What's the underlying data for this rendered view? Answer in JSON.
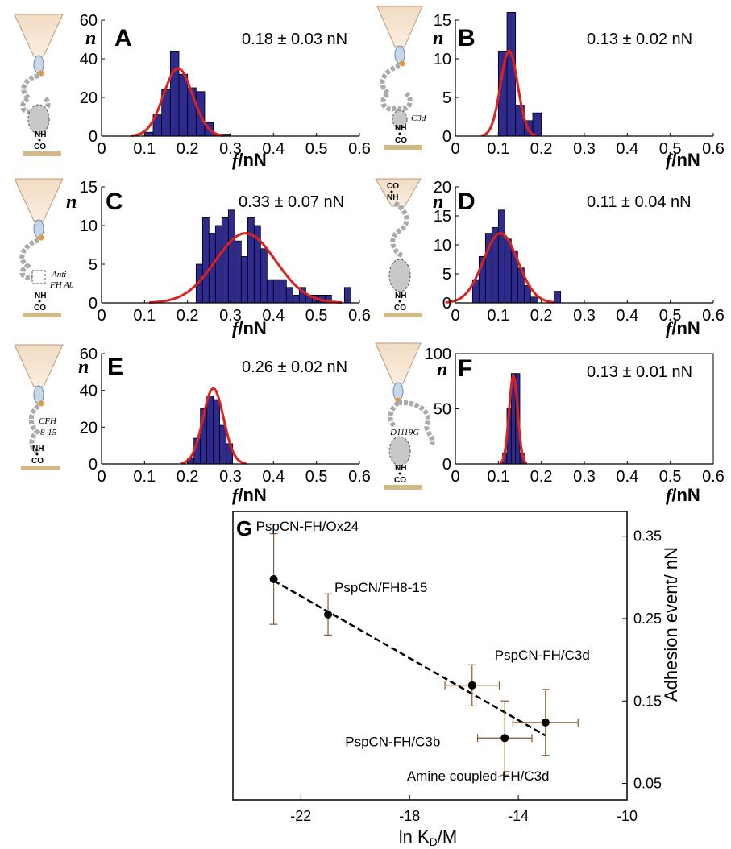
{
  "chart_data": [
    {
      "type": "bar",
      "panel": "A",
      "annotation": "0.18 ± 0.03 nN",
      "ylabel": "n",
      "xlabel_italic": "f",
      "xlabel_unit": "/nN",
      "xlim": [
        0,
        0.6
      ],
      "ylim": [
        0,
        60
      ],
      "xticks": [
        "0",
        "0.1",
        "0.2",
        "0.3",
        "0.4",
        "0.5",
        "0.6"
      ],
      "yticks": [
        "0",
        "20",
        "40",
        "60"
      ],
      "bin_width": 0.02,
      "bin_starts": [
        0.1,
        0.12,
        0.14,
        0.16,
        0.18,
        0.2,
        0.22,
        0.24,
        0.26,
        0.28
      ],
      "values": [
        2,
        11,
        24,
        44,
        32,
        25,
        23,
        7,
        1,
        1
      ],
      "gaussian_fit": {
        "mean": 0.178,
        "sd": 0.034,
        "peak": 35
      },
      "diagram_label": ""
    },
    {
      "type": "bar",
      "panel": "B",
      "annotation": "0.13 ± 0.02 nN",
      "ylabel": "n",
      "xlabel_italic": "f",
      "xlabel_unit": "/nN",
      "xlim": [
        0,
        0.6
      ],
      "ylim": [
        0,
        15
      ],
      "xticks": [
        "0",
        "0.1",
        "0.2",
        "0.3",
        "0.4",
        "0.5",
        "0.6"
      ],
      "yticks": [
        "0",
        "5",
        "10",
        "15"
      ],
      "bin_width": 0.02,
      "bin_starts": [
        0.1,
        0.12,
        0.14,
        0.16,
        0.18
      ],
      "values": [
        11,
        16,
        4,
        2,
        3
      ],
      "gaussian_fit": {
        "mean": 0.125,
        "sd": 0.02,
        "peak": 11
      },
      "diagram_label": "C3d"
    },
    {
      "type": "bar",
      "panel": "C",
      "annotation": "0.33 ± 0.07 nN",
      "ylabel": "n",
      "xlabel_italic": "f",
      "xlabel_unit": "/nN",
      "xlim": [
        0,
        0.6
      ],
      "ylim": [
        0,
        15
      ],
      "xticks": [
        "0",
        "0.1",
        "0.2",
        "0.3",
        "0.4",
        "0.5",
        "0.6"
      ],
      "yticks": [
        "0",
        "5",
        "10",
        "15"
      ],
      "bin_width": 0.015,
      "bin_starts": [
        0.22,
        0.235,
        0.25,
        0.265,
        0.28,
        0.295,
        0.31,
        0.325,
        0.34,
        0.355,
        0.37,
        0.385,
        0.4,
        0.415,
        0.43,
        0.445,
        0.46,
        0.475,
        0.49,
        0.505,
        0.52,
        0.565
      ],
      "values": [
        5,
        11,
        9,
        10,
        11,
        12,
        8,
        6,
        11,
        10,
        7,
        3,
        3,
        3,
        2,
        1,
        2,
        1,
        1,
        1,
        1,
        2
      ],
      "gaussian_fit": {
        "mean": 0.335,
        "sd": 0.07,
        "peak": 9
      },
      "diagram_label": "Anti-FH Ab"
    },
    {
      "type": "bar",
      "panel": "D",
      "annotation": "0.11 ± 0.04 nN",
      "ylabel": "n",
      "xlabel_italic": "f",
      "xlabel_unit": "/nN",
      "xlim": [
        0,
        0.6
      ],
      "ylim": [
        0,
        20
      ],
      "xticks": [
        "0",
        "0.1",
        "0.2",
        "0.3",
        "0.4",
        "0.5",
        "0.6"
      ],
      "yticks": [
        "0",
        "5",
        "10",
        "15",
        "20"
      ],
      "bin_width": 0.015,
      "bin_starts": [
        0.04,
        0.055,
        0.07,
        0.085,
        0.1,
        0.115,
        0.13,
        0.145,
        0.16,
        0.175,
        0.23
      ],
      "values": [
        4,
        8,
        12,
        13,
        16,
        11,
        9,
        6,
        3,
        1,
        2
      ],
      "gaussian_fit": {
        "mean": 0.105,
        "sd": 0.04,
        "peak": 12
      },
      "diagram_label": ""
    },
    {
      "type": "bar",
      "panel": "E",
      "annotation": "0.26 ± 0.02 nN",
      "ylabel": "n",
      "xlabel_italic": "f",
      "xlabel_unit": "/nN",
      "xlim": [
        0,
        0.6
      ],
      "ylim": [
        0,
        60
      ],
      "xticks": [
        "0",
        "0.1",
        "0.2",
        "0.3",
        "0.4",
        "0.5",
        "0.6"
      ],
      "yticks": [
        "0",
        "20",
        "40",
        "60"
      ],
      "bin_width": 0.015,
      "bin_starts": [
        0.2,
        0.215,
        0.23,
        0.245,
        0.26,
        0.275,
        0.29
      ],
      "values": [
        3,
        14,
        30,
        37,
        35,
        21,
        11
      ],
      "gaussian_fit": {
        "mean": 0.26,
        "sd": 0.024,
        "peak": 41
      },
      "diagram_label": "CFH 8-15"
    },
    {
      "type": "bar",
      "panel": "F",
      "annotation": "0.13 ± 0.01 nN",
      "ylabel": "n",
      "xlabel_italic": "f",
      "xlabel_unit": "/nN",
      "xlim": [
        0,
        0.6
      ],
      "ylim": [
        0,
        100
      ],
      "xticks": [
        "0",
        "0.1",
        "0.2",
        "0.3",
        "0.4",
        "0.5",
        "0.6"
      ],
      "yticks": [
        "0",
        "50",
        "100"
      ],
      "bin_width": 0.01,
      "bin_starts": [
        0.11,
        0.12,
        0.13,
        0.14,
        0.15
      ],
      "values": [
        10,
        50,
        82,
        82,
        10
      ],
      "gaussian_fit": {
        "mean": 0.135,
        "sd": 0.01,
        "peak": 80
      },
      "diagram_label": "D1119G"
    },
    {
      "type": "scatter",
      "panel": "G",
      "xlabel": "ln K",
      "xlabel_sub": "D",
      "xlabel_unit": "/M",
      "ylabel": "Adhesion event/ nN",
      "xlim": [
        -24.5,
        -10
      ],
      "ylim": [
        0.03,
        0.38
      ],
      "xticks": [
        -22,
        -18,
        -14,
        -10
      ],
      "xtick_labels": [
        "-22",
        "-18",
        "-14",
        "-10"
      ],
      "yticks": [
        0.05,
        0.15,
        0.25,
        0.35
      ],
      "ytick_labels": [
        "0.05",
        "0.15",
        "0.25",
        "0.35"
      ],
      "points": [
        {
          "label": "PspCN-FH/Ox24",
          "x": -23.0,
          "y": 0.298,
          "xerr": 0,
          "yerr": 0.055
        },
        {
          "label": "PspCN/FH8-15",
          "x": -21.0,
          "y": 0.255,
          "xerr": 0,
          "yerr": 0.025
        },
        {
          "label": "PspCN-FH/C3d",
          "x": -15.7,
          "y": 0.169,
          "xerr": 1.0,
          "yerr": 0.025
        },
        {
          "label": "PspCN-FH/C3b",
          "x": -14.5,
          "y": 0.105,
          "xerr": 1.0,
          "yerr": 0.045
        },
        {
          "label": "Amine coupled-FH/C3d",
          "x": -13.0,
          "y": 0.124,
          "xerr": 1.2,
          "yerr": 0.04
        }
      ],
      "trendline": {
        "x1": -23.0,
        "y1": 0.296,
        "x2": -13.0,
        "y2": 0.108
      }
    }
  ]
}
